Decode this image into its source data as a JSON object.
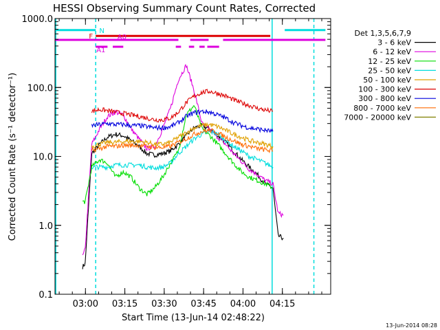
{
  "chart_data": {
    "type": "line",
    "title": "HESSI Observing Summary Count Rates, Corrected",
    "xlabel": "Start Time (13-Jun-14 02:48:22)",
    "ylabel": "Corrected Count Rate (s⁻¹ detector⁻¹)",
    "footer": "13-Jun-2014 08:28",
    "y_scale": "log",
    "ylim": [
      0.1,
      1000
    ],
    "xlim_minutes_after_start": [
      0,
      105
    ],
    "x_ticks": [
      {
        "label": "03:00",
        "t": 11.6
      },
      {
        "label": "03:15",
        "t": 26.6
      },
      {
        "label": "03:30",
        "t": 41.6
      },
      {
        "label": "03:45",
        "t": 56.6
      },
      {
        "label": "04:00",
        "t": 71.6
      },
      {
        "label": "04:15",
        "t": 86.6
      }
    ],
    "y_ticks": [
      {
        "label": "0.1",
        "v": 0.1
      },
      {
        "label": "1.0",
        "v": 1
      },
      {
        "label": "10.0",
        "v": 10
      },
      {
        "label": "100.0",
        "v": 100
      },
      {
        "label": "1000.0",
        "v": 1000
      }
    ],
    "legend_title": "Det 1,3,5,6,7,9",
    "legend_placement": "right",
    "grid": false,
    "x": [
      0,
      10.5,
      11.5,
      14,
      17,
      20,
      23,
      26,
      29,
      32,
      35,
      38,
      41,
      44,
      47,
      50,
      53,
      56,
      59,
      62,
      65,
      68,
      71,
      74,
      77,
      80,
      83,
      85,
      87,
      88.5
    ],
    "series": [
      {
        "name": "3 - 6 keV",
        "color": "#000000",
        "values": [
          null,
          0.25,
          0.28,
          11,
          15,
          19,
          21,
          20,
          17,
          14,
          11,
          10.5,
          11,
          12,
          15,
          20,
          26,
          28,
          25,
          20,
          16,
          12,
          9,
          7,
          5.5,
          4,
          3.5,
          0.7,
          0.65,
          null
        ]
      },
      {
        "name": "6 - 12 keV",
        "color": "#dd00dd",
        "values": [
          null,
          0.35,
          0.45,
          15,
          25,
          38,
          44,
          40,
          25,
          18,
          13,
          14,
          25,
          50,
          130,
          210,
          90,
          30,
          24,
          19,
          15,
          11,
          8.5,
          6.5,
          5.5,
          4.5,
          4,
          1.5,
          1.4,
          null
        ]
      },
      {
        "name": "12 - 25 keV",
        "color": "#00dd00",
        "values": [
          null,
          2.2,
          2.2,
          7,
          9,
          8,
          5,
          6,
          5,
          3.5,
          2.8,
          3.5,
          5,
          8,
          12,
          40,
          55,
          25,
          20,
          15,
          11,
          8,
          6,
          5,
          4.5,
          4,
          3.5,
          null,
          null,
          null
        ]
      },
      {
        "name": "25 - 50 keV",
        "color": "#00dddd",
        "values": [
          null,
          null,
          null,
          7,
          7,
          7,
          7.5,
          7.5,
          7.5,
          7.5,
          7,
          6.8,
          7,
          8,
          11,
          14,
          18,
          21,
          23,
          21,
          17,
          14,
          12,
          10,
          9,
          8,
          7,
          null,
          null,
          null
        ]
      },
      {
        "name": "50 - 100 keV",
        "color": "#e0a000",
        "values": [
          null,
          null,
          null,
          14,
          15,
          16,
          16,
          16.5,
          16.5,
          16.5,
          16,
          15,
          15,
          16,
          19,
          22,
          26,
          28,
          29,
          27,
          24,
          21,
          19,
          17,
          16,
          15,
          14,
          null,
          null,
          null
        ]
      },
      {
        "name": "100 - 300 keV",
        "color": "#dd0000",
        "values": [
          null,
          null,
          null,
          45,
          48,
          46,
          44,
          42,
          40,
          38,
          36,
          34,
          34,
          36,
          44,
          60,
          75,
          85,
          88,
          82,
          75,
          66,
          60,
          55,
          50,
          47,
          45,
          null,
          null,
          null
        ]
      },
      {
        "name": "300 - 800 keV",
        "color": "#0000dd",
        "values": [
          null,
          null,
          null,
          28,
          29,
          30,
          29,
          29,
          28,
          28,
          27,
          26,
          26,
          27,
          31,
          38,
          43,
          45,
          44,
          40,
          36,
          31,
          28,
          26,
          25,
          24,
          23,
          null,
          null,
          null
        ]
      },
      {
        "name": "800 - 7000 keV",
        "color": "#ff6a00",
        "values": [
          null,
          null,
          null,
          12,
          13,
          14,
          14,
          14.5,
          14.5,
          14.5,
          14,
          13.5,
          13.5,
          14,
          16,
          18,
          21,
          23,
          24,
          22,
          19,
          17,
          15,
          14,
          13,
          12.5,
          12,
          null,
          null,
          null
        ]
      },
      {
        "name": "7000 - 20000 keV",
        "color": "#808000",
        "values": [
          null,
          null,
          null,
          null,
          null,
          null,
          null,
          null,
          null,
          null,
          null,
          null,
          null,
          null,
          null,
          null,
          null,
          null,
          null,
          null,
          null,
          null,
          null,
          null,
          null,
          null,
          null,
          null,
          null,
          null
        ]
      }
    ],
    "flag_bars": [
      {
        "label": "N",
        "color": "#00dddd",
        "level": 680,
        "segments": [
          [
            0.5,
            15.5
          ],
          [
            87.5,
            103
          ]
        ]
      },
      {
        "label": "F",
        "color": "#dd0000",
        "level": 560,
        "segments": [
          [
            15.5,
            82
          ]
        ]
      },
      {
        "label": "A0",
        "color": "#dd00dd",
        "level": 490,
        "segments": [
          [
            0,
            47
          ],
          [
            51.5,
            58.5
          ],
          [
            64,
            103
          ]
        ]
      },
      {
        "label": "A1",
        "color": "#dd00dd",
        "level": 390,
        "segments": [
          [
            15.5,
            20
          ],
          [
            22,
            26
          ],
          [
            46,
            48
          ],
          [
            51,
            53
          ],
          [
            55,
            57
          ],
          [
            58,
            62.5
          ]
        ]
      }
    ],
    "vertical_markers": [
      {
        "t": 0.3,
        "style": "solid",
        "color": "#00dddd"
      },
      {
        "t": 15.5,
        "style": "dashed",
        "color": "#00dddd"
      },
      {
        "t": 82.7,
        "style": "solid",
        "color": "#00dddd"
      },
      {
        "t": 98.6,
        "style": "dashed",
        "color": "#00dddd"
      }
    ]
  }
}
